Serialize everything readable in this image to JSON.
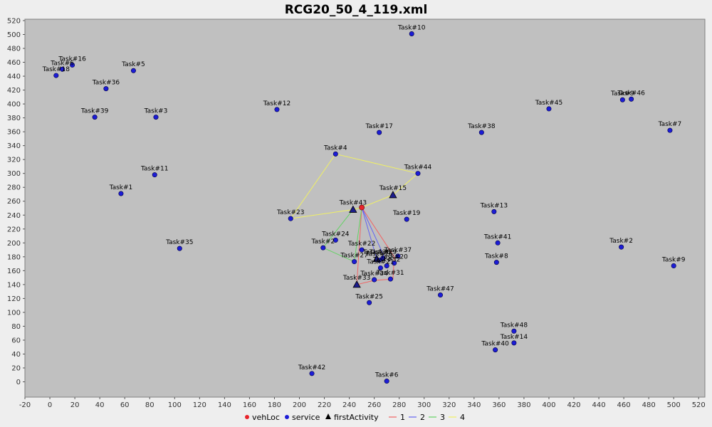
{
  "chart_data": {
    "type": "scatter",
    "title": "RCG20_50_4_119.xml",
    "xlabel": "",
    "ylabel": "",
    "xlim": [
      -20,
      525
    ],
    "ylim": [
      -22,
      522
    ],
    "xticks": [
      -20,
      0,
      20,
      40,
      60,
      80,
      100,
      120,
      140,
      160,
      180,
      200,
      220,
      240,
      260,
      280,
      300,
      320,
      340,
      360,
      380,
      400,
      420,
      440,
      460,
      480,
      500,
      520
    ],
    "yticks": [
      0,
      20,
      40,
      60,
      80,
      100,
      120,
      140,
      160,
      180,
      200,
      220,
      240,
      260,
      280,
      300,
      320,
      340,
      360,
      380,
      400,
      420,
      440,
      460,
      480,
      500,
      520
    ],
    "grid": false,
    "legend": {
      "placement": "bottom",
      "entries": [
        {
          "label": "vehLoc",
          "kind": "point",
          "color": "#e8232a"
        },
        {
          "label": "service",
          "kind": "point",
          "color": "#1c1cd6"
        },
        {
          "label": "firstActivity",
          "kind": "triangle",
          "color": "#000000"
        },
        {
          "label": "1",
          "kind": "line",
          "color": "#f06464"
        },
        {
          "label": "2",
          "kind": "line",
          "color": "#6464f0"
        },
        {
          "label": "3",
          "kind": "line",
          "color": "#64d264"
        },
        {
          "label": "4",
          "kind": "line",
          "color": "#f0f064"
        }
      ]
    },
    "vehicle": {
      "x": 250,
      "y": 251
    },
    "services": [
      {
        "label": "Task#1",
        "x": 57,
        "y": 271
      },
      {
        "label": "Task#3",
        "x": 85,
        "y": 381
      },
      {
        "label": "Task#5",
        "x": 67,
        "y": 448
      },
      {
        "label": "Task#6",
        "x": 10,
        "y": 450
      },
      {
        "label": "Task#18",
        "x": 5,
        "y": 441
      },
      {
        "label": "Task#16",
        "x": 18,
        "y": 456
      },
      {
        "label": "Task#36",
        "x": 45,
        "y": 422
      },
      {
        "label": "Task#39",
        "x": 36,
        "y": 381
      },
      {
        "label": "Task#11",
        "x": 84,
        "y": 298
      },
      {
        "label": "Task#35",
        "x": 104,
        "y": 192
      },
      {
        "label": "Task#12",
        "x": 182,
        "y": 392
      },
      {
        "label": "Task#10",
        "x": 290,
        "y": 501
      },
      {
        "label": "Task#17",
        "x": 264,
        "y": 359
      },
      {
        "label": "Task#4",
        "x": 229,
        "y": 328
      },
      {
        "label": "Task#44",
        "x": 295,
        "y": 300
      },
      {
        "label": "Task#23",
        "x": 193,
        "y": 235
      },
      {
        "label": "Task#19",
        "x": 286,
        "y": 234
      },
      {
        "label": "Task#24",
        "x": 229,
        "y": 204
      },
      {
        "label": "Task#2",
        "x": 219,
        "y": 193
      },
      {
        "label": "Task#22",
        "x": 250,
        "y": 190
      },
      {
        "label": "Task#27",
        "x": 244,
        "y": 173
      },
      {
        "label": "Task#37",
        "x": 279,
        "y": 181
      },
      {
        "label": "Task#20",
        "x": 276,
        "y": 171
      },
      {
        "label": "Task#29",
        "x": 267,
        "y": 178
      },
      {
        "label": "Task#26",
        "x": 264,
        "y": 175
      },
      {
        "label": "Task#32",
        "x": 270,
        "y": 167
      },
      {
        "label": "Task#21",
        "x": 265,
        "y": 164
      },
      {
        "label": "Task#34",
        "x": 260,
        "y": 147
      },
      {
        "label": "Task#31",
        "x": 273,
        "y": 148
      },
      {
        "label": "Task#25",
        "x": 256,
        "y": 114
      },
      {
        "label": "Task#42",
        "x": 210,
        "y": 12
      },
      {
        "label": "Task#6",
        "x": 270,
        "y": 1
      },
      {
        "label": "Task#47",
        "x": 313,
        "y": 125
      },
      {
        "label": "Task#38",
        "x": 346,
        "y": 359
      },
      {
        "label": "Task#13",
        "x": 356,
        "y": 245
      },
      {
        "label": "Task#41",
        "x": 359,
        "y": 200
      },
      {
        "label": "Task#8",
        "x": 358,
        "y": 172
      },
      {
        "label": "Task#48",
        "x": 372,
        "y": 73
      },
      {
        "label": "Task#14",
        "x": 372,
        "y": 56
      },
      {
        "label": "Task#40",
        "x": 357,
        "y": 46
      },
      {
        "label": "Task#45",
        "x": 400,
        "y": 393
      },
      {
        "label": "Task#9",
        "x": 459,
        "y": 406
      },
      {
        "label": "Task#46",
        "x": 466,
        "y": 407
      },
      {
        "label": "Task#2",
        "x": 458,
        "y": 194
      },
      {
        "label": "Task#7",
        "x": 497,
        "y": 362
      },
      {
        "label": "Task#9",
        "x": 500,
        "y": 167
      }
    ],
    "first_activities": [
      {
        "label": "Task#43",
        "x": 243,
        "y": 248
      },
      {
        "label": "Task#15",
        "x": 275,
        "y": 269
      },
      {
        "label": "Task#33",
        "x": 246,
        "y": 140
      },
      {
        "label": "Task#30",
        "x": 262,
        "y": 177
      }
    ],
    "series": [
      {
        "name": "1",
        "color": "#f06464",
        "path": [
          [
            250,
            251
          ],
          [
            276,
            180
          ],
          [
            275,
            148
          ],
          [
            260,
            146
          ],
          [
            246,
            140
          ],
          [
            250,
            251
          ]
        ]
      },
      {
        "name": "2",
        "color": "#6464f0",
        "path": [
          [
            250,
            251
          ],
          [
            268,
            180
          ],
          [
            262,
            177
          ],
          [
            250,
            251
          ]
        ]
      },
      {
        "name": "3",
        "color": "#64d264",
        "path": [
          [
            250,
            251
          ],
          [
            243,
            248
          ],
          [
            219,
            193
          ],
          [
            244,
            173
          ],
          [
            250,
            251
          ]
        ]
      },
      {
        "name": "4",
        "color": "#f0f064",
        "path": [
          [
            250,
            251
          ],
          [
            275,
            269
          ],
          [
            295,
            300
          ],
          [
            229,
            328
          ],
          [
            193,
            235
          ],
          [
            243,
            248
          ],
          [
            250,
            251
          ]
        ]
      }
    ]
  }
}
